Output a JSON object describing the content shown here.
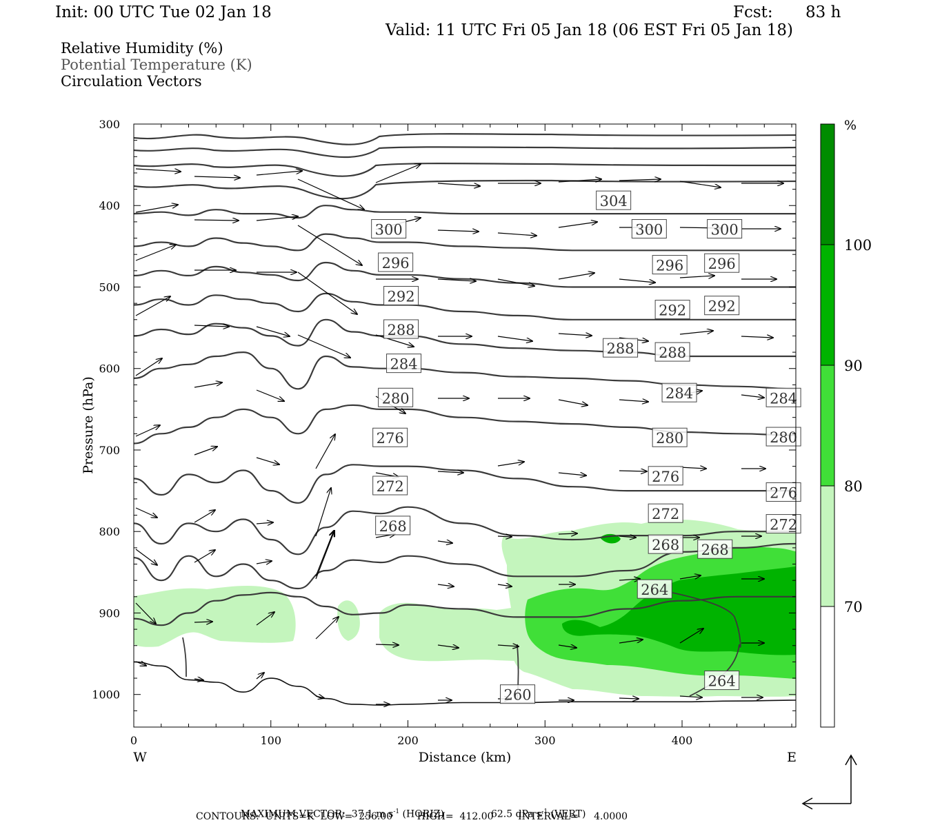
{
  "header": {
    "init": "Init: 00 UTC Tue 02 Jan 18",
    "fcst_label": "Fcst:",
    "fcst_value": "83 h",
    "valid": "Valid: 11 UTC Fri 05 Jan 18 (06 EST Fri 05 Jan 18)"
  },
  "legend": {
    "rh": "Relative Humidity (%)",
    "theta": "Potential Temperature (K)",
    "vectors": "Circulation Vectors"
  },
  "chart_data": {
    "type": "contour-cross-section",
    "xlabel": "Distance (km)",
    "ylabel": "Pressure (hPa)",
    "xlim": [
      0,
      483
    ],
    "ylim": [
      1040,
      300
    ],
    "x_ticks": [
      0,
      100,
      200,
      300,
      400
    ],
    "x_tick_labels": [
      "0",
      "100",
      "200",
      "300",
      "400"
    ],
    "y_ticks": [
      300,
      400,
      500,
      600,
      700,
      800,
      900,
      1000
    ],
    "y_tick_labels": [
      "300",
      "400",
      "500",
      "600",
      "700",
      "800",
      "900",
      "1000"
    ],
    "west_label": "W",
    "east_label": "E",
    "colorbar": {
      "unit": "%",
      "levels": [
        70,
        80,
        90,
        100
      ],
      "level_labels": [
        "70",
        "80",
        "90",
        "100"
      ],
      "colors": [
        "#ffffff",
        "#c4f5bd",
        "#40df38",
        "#00b300",
        "#008c00"
      ]
    },
    "theta_contours": {
      "units": "K",
      "interval": 4,
      "series": [
        {
          "value": 260,
          "x": [
            0,
            20,
            40,
            60,
            80,
            100,
            120,
            140,
            160,
            180,
            200,
            240,
            280,
            320,
            360,
            400,
            440,
            483
          ],
          "p": [
            960,
            965,
            982,
            985,
            997,
            980,
            990,
            1005,
            1012,
            1013,
            1012,
            1010,
            1010,
            1009,
            1009,
            1009,
            1008,
            1007
          ]
        },
        {
          "value": 264,
          "x": [
            0,
            20,
            40,
            60,
            80,
            100,
            120,
            140,
            160,
            180,
            200,
            240,
            280,
            320,
            360,
            400,
            440,
            483
          ],
          "p": [
            907,
            915,
            900,
            885,
            878,
            875,
            880,
            892,
            902,
            900,
            890,
            895,
            905,
            905,
            895,
            885,
            880,
            880
          ]
        },
        {
          "value": 268,
          "x": [
            0,
            20,
            40,
            60,
            80,
            100,
            120,
            140,
            160,
            180,
            200,
            240,
            280,
            320,
            360,
            400,
            440,
            483
          ],
          "p": [
            832,
            860,
            830,
            855,
            840,
            860,
            870,
            848,
            835,
            838,
            830,
            840,
            855,
            855,
            848,
            825,
            820,
            815
          ]
        },
        {
          "value": 272,
          "x": [
            0,
            20,
            40,
            60,
            80,
            100,
            120,
            140,
            160,
            180,
            200,
            240,
            280,
            320,
            360,
            400,
            440,
            483
          ],
          "p": [
            790,
            815,
            790,
            800,
            785,
            810,
            828,
            795,
            775,
            778,
            770,
            790,
            805,
            810,
            805,
            805,
            800,
            800
          ]
        },
        {
          "value": 276,
          "x": [
            0,
            20,
            40,
            60,
            80,
            100,
            120,
            140,
            160,
            180,
            200,
            240,
            280,
            320,
            360,
            400,
            440,
            483
          ],
          "p": [
            735,
            755,
            730,
            740,
            725,
            750,
            765,
            730,
            718,
            720,
            720,
            725,
            735,
            745,
            750,
            750,
            750,
            750
          ]
        },
        {
          "value": 280,
          "x": [
            0,
            20,
            40,
            60,
            80,
            100,
            120,
            140,
            160,
            180,
            200,
            240,
            280,
            320,
            360,
            400,
            440,
            483
          ],
          "p": [
            692,
            680,
            672,
            660,
            650,
            660,
            680,
            650,
            645,
            650,
            650,
            660,
            665,
            668,
            672,
            678,
            680,
            682
          ]
        },
        {
          "value": 284,
          "x": [
            0,
            20,
            40,
            60,
            80,
            100,
            120,
            140,
            160,
            180,
            200,
            240,
            280,
            320,
            360,
            400,
            440,
            483
          ],
          "p": [
            612,
            600,
            595,
            585,
            580,
            600,
            625,
            585,
            598,
            600,
            600,
            605,
            610,
            612,
            615,
            620,
            622,
            625
          ]
        },
        {
          "value": 288,
          "x": [
            0,
            20,
            40,
            60,
            80,
            100,
            120,
            140,
            160,
            180,
            200,
            240,
            280,
            320,
            360,
            400,
            440,
            483
          ],
          "p": [
            560,
            552,
            558,
            545,
            550,
            560,
            572,
            540,
            555,
            560,
            560,
            570,
            575,
            578,
            580,
            585,
            585,
            585
          ]
        },
        {
          "value": 292,
          "x": [
            0,
            20,
            40,
            60,
            80,
            100,
            120,
            140,
            160,
            180,
            200,
            240,
            280,
            320,
            360,
            400,
            440,
            483
          ],
          "p": [
            522,
            515,
            522,
            510,
            515,
            520,
            530,
            508,
            518,
            522,
            522,
            530,
            535,
            540,
            540,
            540,
            540,
            540
          ]
        },
        {
          "value": 296,
          "x": [
            0,
            20,
            40,
            60,
            80,
            100,
            120,
            140,
            160,
            180,
            200,
            240,
            280,
            320,
            360,
            400,
            440,
            483
          ],
          "p": [
            486,
            480,
            486,
            475,
            482,
            485,
            492,
            470,
            480,
            485,
            485,
            490,
            495,
            500,
            500,
            500,
            500,
            500
          ]
        },
        {
          "value": 300,
          "x": [
            0,
            20,
            40,
            60,
            80,
            100,
            120,
            140,
            160,
            180,
            200,
            240,
            280,
            320,
            360,
            400,
            440,
            483
          ],
          "p": [
            450,
            445,
            450,
            440,
            446,
            450,
            455,
            435,
            440,
            445,
            445,
            450,
            452,
            455,
            455,
            455,
            455,
            455
          ]
        },
        {
          "value": 304,
          "x": [
            0,
            20,
            40,
            60,
            80,
            100,
            120,
            140,
            160,
            180,
            200,
            240,
            280,
            320,
            360,
            400,
            440,
            483
          ],
          "p": [
            410,
            408,
            412,
            405,
            410,
            410,
            415,
            400,
            405,
            408,
            408,
            410,
            410,
            410,
            410,
            410,
            410,
            410
          ]
        }
      ]
    },
    "theta_labels": [
      {
        "text": "304",
        "x": 350,
        "p": 394
      },
      {
        "text": "300",
        "x": 186,
        "p": 429
      },
      {
        "text": "300",
        "x": 376,
        "p": 429
      },
      {
        "text": "300",
        "x": 431,
        "p": 429
      },
      {
        "text": "296",
        "x": 191,
        "p": 470
      },
      {
        "text": "296",
        "x": 391,
        "p": 473
      },
      {
        "text": "296",
        "x": 429,
        "p": 471
      },
      {
        "text": "292",
        "x": 195,
        "p": 511
      },
      {
        "text": "292",
        "x": 393,
        "p": 528
      },
      {
        "text": "292",
        "x": 429,
        "p": 523
      },
      {
        "text": "288",
        "x": 195,
        "p": 552
      },
      {
        "text": "288",
        "x": 355,
        "p": 575
      },
      {
        "text": "288",
        "x": 393,
        "p": 580
      },
      {
        "text": "284",
        "x": 197,
        "p": 594
      },
      {
        "text": "284",
        "x": 398,
        "p": 630
      },
      {
        "text": "284",
        "x": 474,
        "p": 636
      },
      {
        "text": "280",
        "x": 191,
        "p": 636
      },
      {
        "text": "280",
        "x": 391,
        "p": 685
      },
      {
        "text": "280",
        "x": 474,
        "p": 684
      },
      {
        "text": "276",
        "x": 187,
        "p": 685
      },
      {
        "text": "276",
        "x": 388,
        "p": 732
      },
      {
        "text": "276",
        "x": 474,
        "p": 752
      },
      {
        "text": "272",
        "x": 187,
        "p": 744
      },
      {
        "text": "272",
        "x": 388,
        "p": 778
      },
      {
        "text": "272",
        "x": 474,
        "p": 791
      },
      {
        "text": "268",
        "x": 189,
        "p": 793
      },
      {
        "text": "268",
        "x": 388,
        "p": 816
      },
      {
        "text": "268",
        "x": 424,
        "p": 822
      },
      {
        "text": "264",
        "x": 380,
        "p": 871
      },
      {
        "text": "264",
        "x": 429,
        "p": 983
      },
      {
        "text": "260",
        "x": 280,
        "p": 1000
      }
    ],
    "vectors_note": "Circulation vectors drawn on a sampled grid (u,w)"
  },
  "footer": {
    "line1a": "MAXIMUM VECTOR:  37.1 m s",
    "sup1": "-1",
    "line1b": " (HORIZ)",
    "line1c": "62.5 dPa s",
    "sup2": "-1",
    "line1d": " (VERT)",
    "line2": "CONTOURS:  UNITS=K  LOW=  256.00        HIGH=  412.00        INTERVAL=     4.0000"
  }
}
